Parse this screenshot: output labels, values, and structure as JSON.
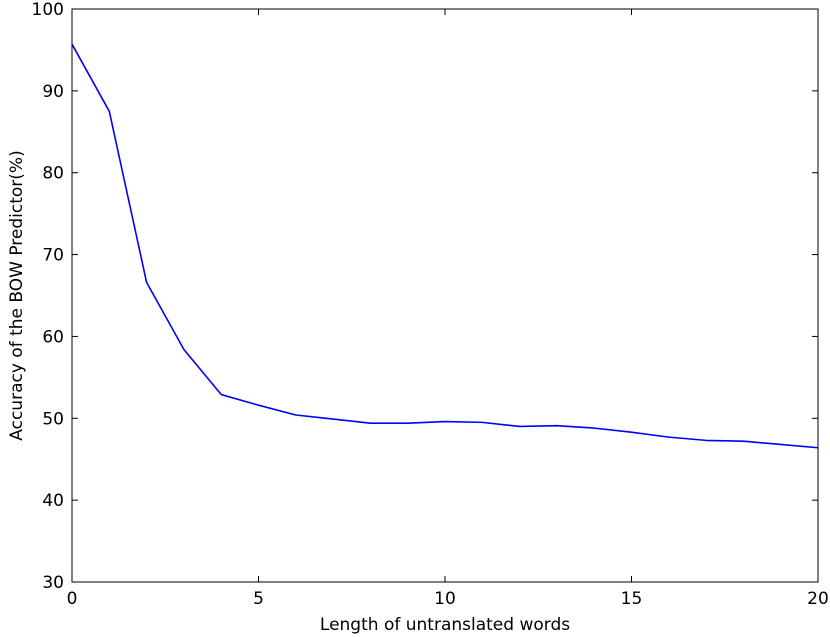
{
  "chart_data": {
    "type": "line",
    "title": "",
    "xlabel": "Length of untranslated words",
    "ylabel": "Accuracy of the BOW Predictor(%)",
    "xlim": [
      0,
      20
    ],
    "ylim": [
      30,
      100
    ],
    "x_ticks": [
      "0",
      "5",
      "10",
      "15",
      "20"
    ],
    "y_ticks": [
      "30",
      "40",
      "50",
      "60",
      "70",
      "80",
      "90",
      "100"
    ],
    "grid": false,
    "legend": "none",
    "series": [
      {
        "color": "#0000ff",
        "x": [
          0,
          1,
          2,
          3,
          4,
          5,
          6,
          7,
          8,
          9,
          10,
          11,
          12,
          13,
          14,
          15,
          16,
          17,
          18,
          19,
          20
        ],
        "y": [
          95.7,
          87.5,
          66.6,
          58.4,
          52.9,
          51.6,
          50.4,
          49.9,
          49.4,
          49.4,
          49.6,
          49.5,
          49.0,
          49.1,
          48.8,
          48.3,
          47.7,
          47.3,
          47.2,
          46.8,
          46.4
        ]
      }
    ]
  }
}
